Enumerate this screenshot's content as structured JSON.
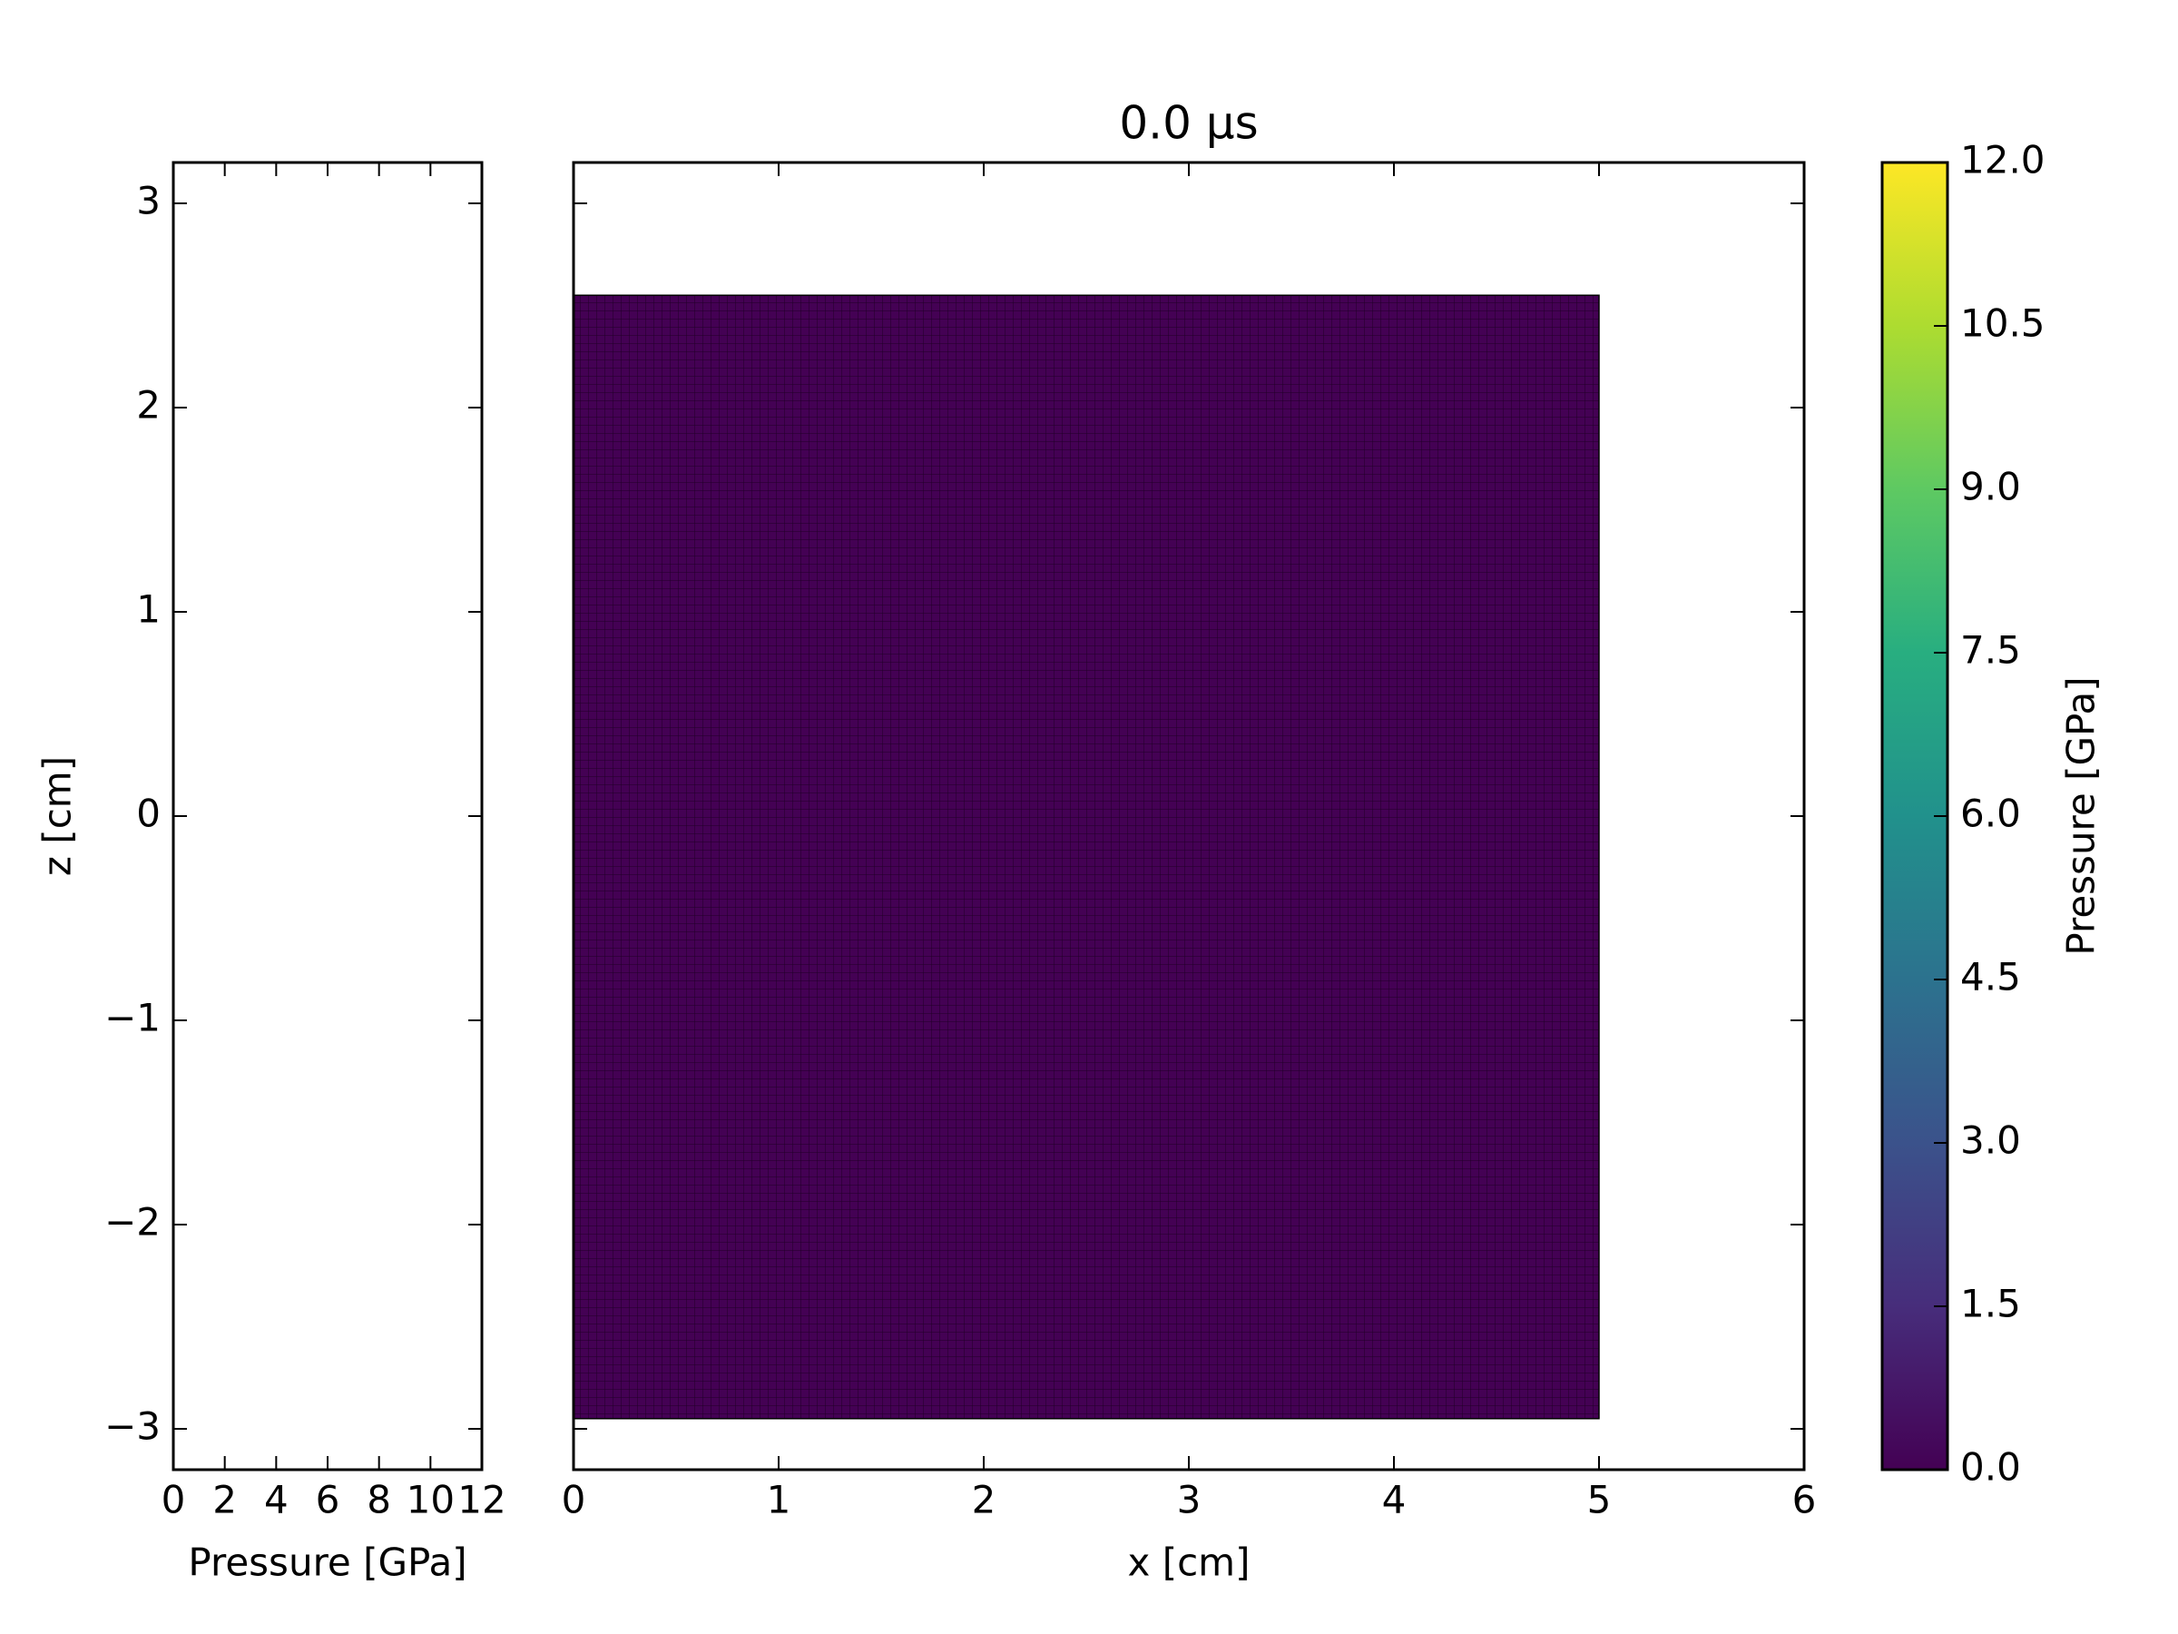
{
  "chart_data": [
    {
      "type": "line",
      "xlabel": "Pressure [GPa]",
      "ylabel": "z [cm]",
      "xlim": [
        0,
        12
      ],
      "ylim": [
        -3.2,
        3.2
      ],
      "xticks": [
        0,
        2,
        4,
        6,
        8,
        10,
        12
      ],
      "yticks": [
        {
          "value": -3,
          "label": "−3"
        },
        {
          "value": -2,
          "label": "−2"
        },
        {
          "value": -1,
          "label": "−1"
        },
        0,
        1,
        2,
        3
      ]
    },
    {
      "type": "mesh",
      "title": "0.0 μs",
      "xlabel": "x [cm]",
      "xlim": [
        0,
        6
      ],
      "ylim": [
        -3.2,
        3.2
      ],
      "xticks": [
        0,
        1,
        2,
        3,
        4,
        5,
        6
      ],
      "yticks": [
        -3,
        -2,
        -1,
        0,
        1,
        2,
        3
      ],
      "mesh": {
        "x": [
          0,
          5
        ],
        "y": [
          -2.95,
          2.55
        ],
        "value": 0
      }
    },
    {
      "type": "colorbar",
      "label": "Pressure [GPa]",
      "colormap": "viridis",
      "ylim": [
        0,
        12
      ],
      "yticks": [
        {
          "value": 0,
          "label": "0.0"
        },
        {
          "value": 1.5,
          "label": "1.5"
        },
        {
          "value": 3,
          "label": "3.0"
        },
        {
          "value": 4.5,
          "label": "4.5"
        },
        {
          "value": 6,
          "label": "6.0"
        },
        {
          "value": 7.5,
          "label": "7.5"
        },
        {
          "value": 9,
          "label": "9.0"
        },
        {
          "value": 10.5,
          "label": "10.5"
        },
        {
          "value": 12,
          "label": "12.0"
        }
      ]
    }
  ]
}
